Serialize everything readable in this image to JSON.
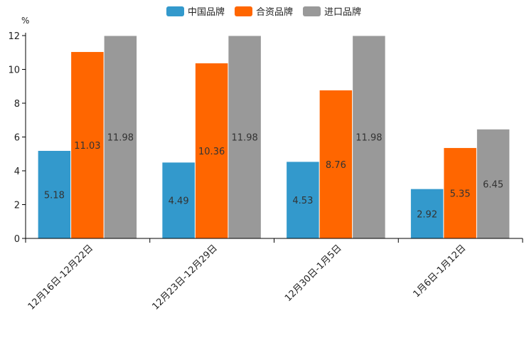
{
  "chart_data": {
    "type": "bar",
    "unit": "%",
    "categories": [
      "12月16日-12月22日",
      "12月23日-12月29日",
      "12月30日-1月5日",
      "1月6日-1月12日"
    ],
    "series": [
      {
        "name": "中国品牌",
        "color": "#3399cc",
        "values": [
          5.18,
          4.49,
          4.53,
          2.92
        ],
        "labels": [
          "5.18",
          "4.49",
          "4.53",
          "2.92"
        ]
      },
      {
        "name": "合资品牌",
        "color": "#ff6600",
        "values": [
          11.03,
          10.36,
          8.76,
          5.35
        ],
        "labels": [
          "11.03",
          "10.36",
          "8.76",
          "5.35"
        ]
      },
      {
        "name": "进口品牌",
        "color": "#999999",
        "values": [
          11.98,
          11.98,
          11.98,
          6.45
        ],
        "labels": [
          "11.98",
          "11.98",
          "11.98",
          "6.45"
        ]
      }
    ],
    "ylim": [
      0,
      12
    ],
    "yticks": [
      0,
      2,
      4,
      6,
      8,
      10,
      12
    ],
    "ytick_labels": [
      "0",
      "2",
      "4",
      "6",
      "8",
      "10",
      "12"
    ],
    "legend_position": "top-center",
    "grid": false
  }
}
